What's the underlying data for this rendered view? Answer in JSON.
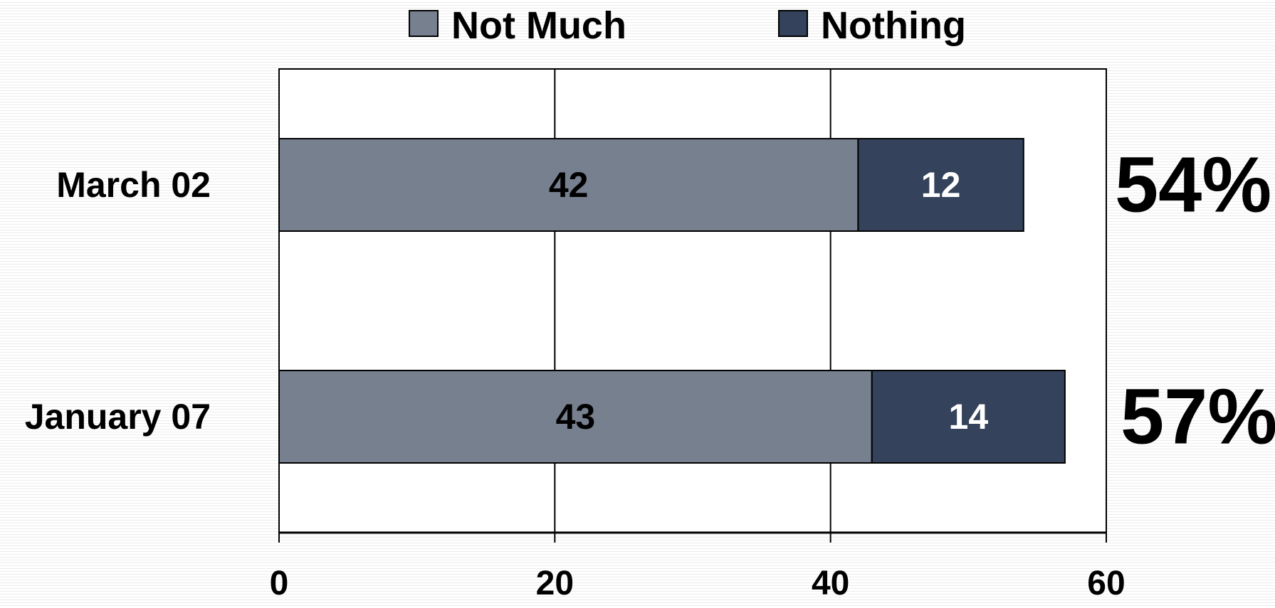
{
  "chart_data": {
    "type": "bar",
    "orientation": "horizontal",
    "stacked": true,
    "categories": [
      "March 02",
      "January 07"
    ],
    "series": [
      {
        "name": "Not Much",
        "values": [
          42,
          43
        ],
        "color": "#77808f",
        "label_color": "#000000"
      },
      {
        "name": "Nothing",
        "values": [
          12,
          14
        ],
        "color": "#34435b",
        "label_color": "#ffffff"
      }
    ],
    "totals": [
      "54%",
      "57%"
    ],
    "xlim": [
      0,
      60
    ],
    "xticks": [
      0,
      20,
      40,
      60
    ],
    "grid": true,
    "legend_position": "top"
  }
}
